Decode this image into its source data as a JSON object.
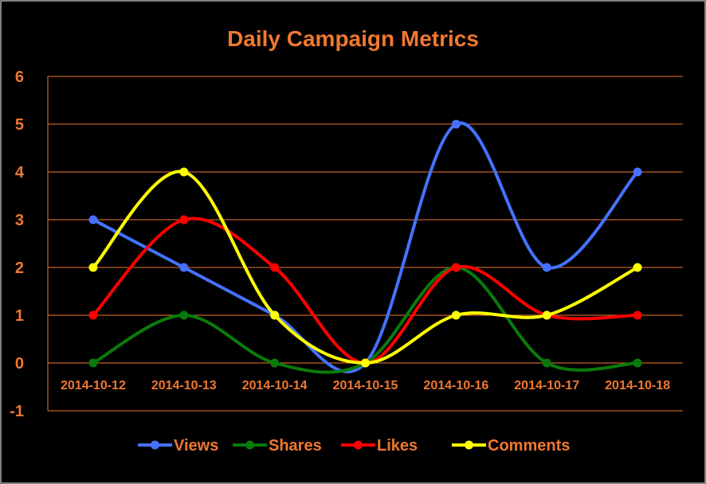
{
  "chart_data": {
    "type": "line",
    "title": "Daily Campaign Metrics",
    "xlabel": "",
    "ylabel": "",
    "categories": [
      "2014-10-12",
      "2014-10-13",
      "2014-10-14",
      "2014-10-15",
      "2014-10-16",
      "2014-10-17",
      "2014-10-18"
    ],
    "ylim": [
      -1,
      6
    ],
    "yticks": [
      -1,
      0,
      1,
      2,
      3,
      4,
      5,
      6
    ],
    "grid": true,
    "smooth": true,
    "legend_position": "bottom",
    "series": [
      {
        "name": "Views",
        "color": "#4472FF",
        "values": [
          3,
          2,
          1,
          0,
          5,
          2,
          4
        ]
      },
      {
        "name": "Shares",
        "color": "#0A7A0A",
        "values": [
          0,
          1,
          0,
          0,
          2,
          0,
          0
        ]
      },
      {
        "name": "Likes",
        "color": "#FF0000",
        "values": [
          1,
          3,
          2,
          0,
          2,
          1,
          1
        ]
      },
      {
        "name": "Comments",
        "color": "#FFFF00",
        "values": [
          2,
          4,
          1,
          0,
          1,
          1,
          2
        ]
      }
    ],
    "colors": {
      "background": "#000000",
      "text": "#F07830",
      "gridline": "#F07830",
      "frame": "#FFFFFF"
    }
  }
}
